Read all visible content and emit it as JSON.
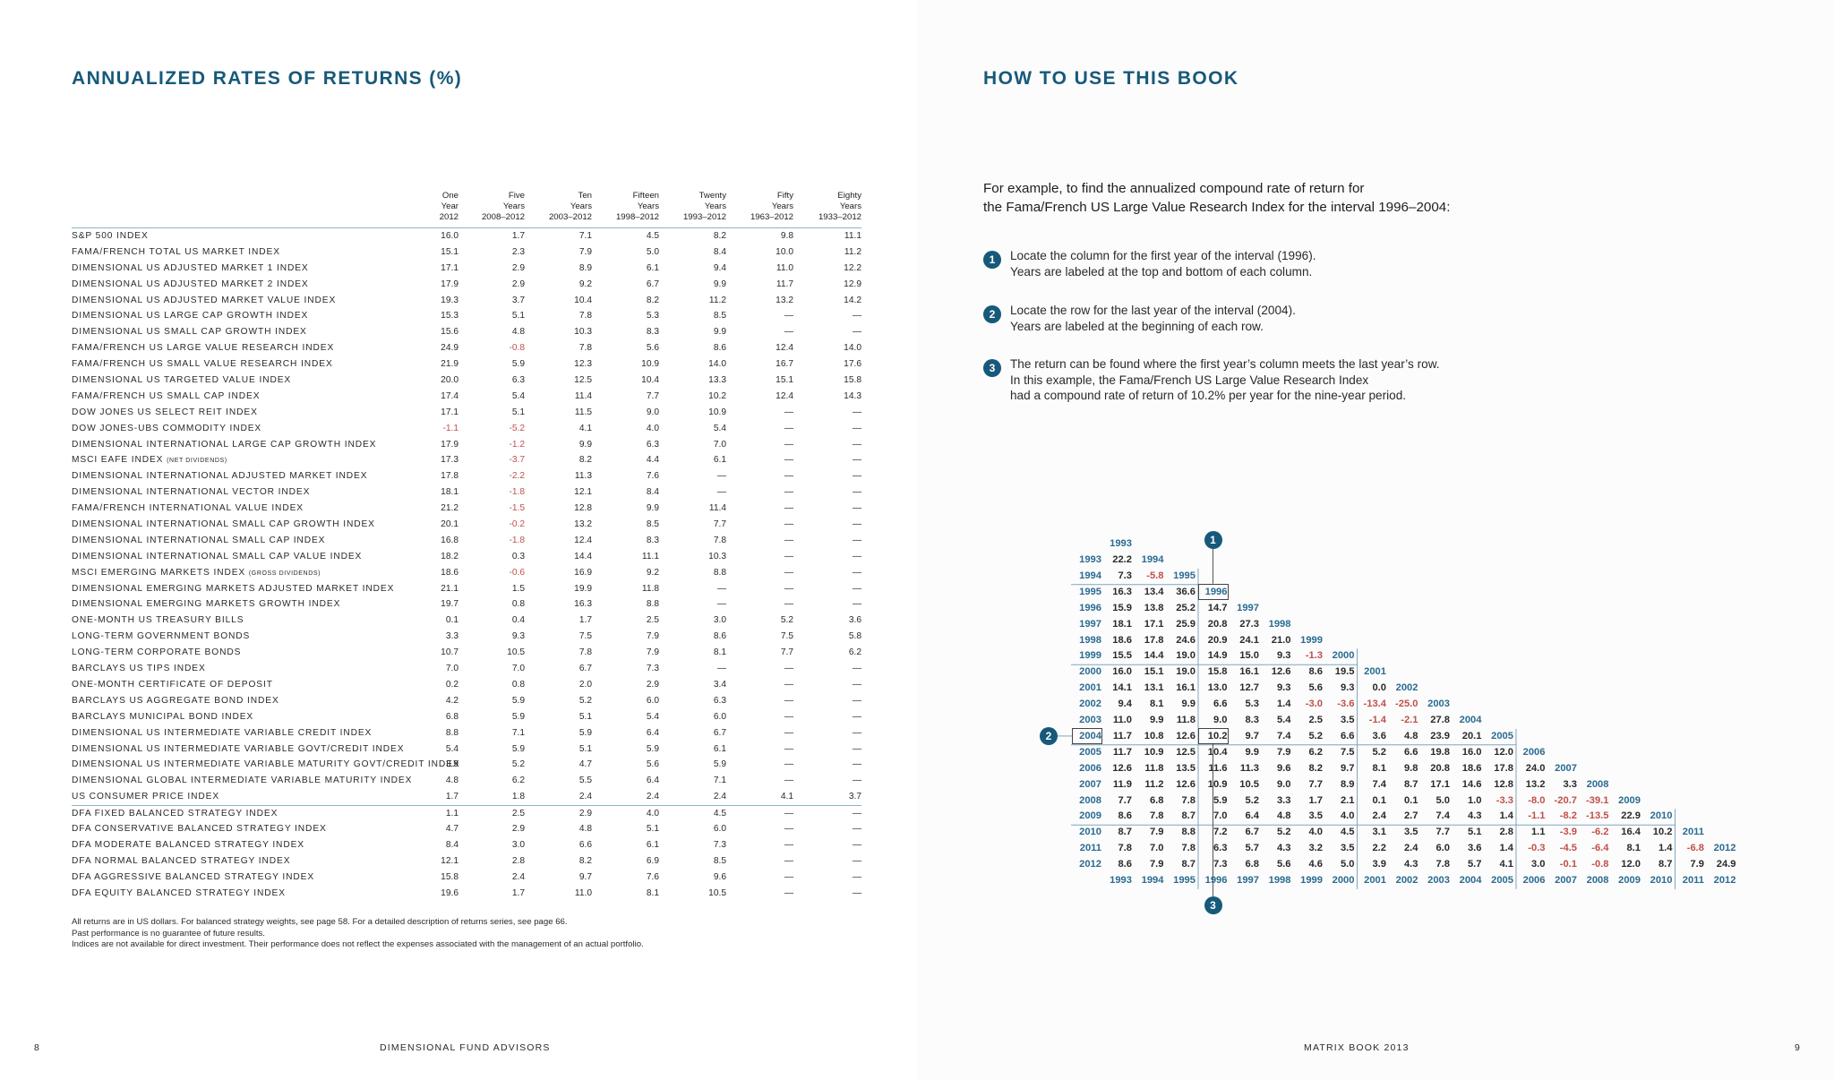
{
  "left": {
    "title": "ANNUALIZED RATES OF RETURNS (%)",
    "columns": [
      [
        "One",
        "Year",
        "2012"
      ],
      [
        "Five",
        "Years",
        "2008–2012"
      ],
      [
        "Ten",
        "Years",
        "2003–2012"
      ],
      [
        "Fifteen",
        "Years",
        "1998–2012"
      ],
      [
        "Twenty",
        "Years",
        "1993–2012"
      ],
      [
        "Fifty",
        "Years",
        "1963–2012"
      ],
      [
        "Eighty",
        "Years",
        "1933–2012"
      ]
    ],
    "rows": [
      {
        "label": "S&P 500 INDEX",
        "values": [
          "16.0",
          "1.7",
          "7.1",
          "4.5",
          "8.2",
          "9.8",
          "11.1"
        ]
      },
      {
        "label": "FAMA/FRENCH TOTAL US MARKET INDEX",
        "values": [
          "15.1",
          "2.3",
          "7.9",
          "5.0",
          "8.4",
          "10.0",
          "11.2"
        ]
      },
      {
        "label": "DIMENSIONAL US ADJUSTED MARKET 1 INDEX",
        "values": [
          "17.1",
          "2.9",
          "8.9",
          "6.1",
          "9.4",
          "11.0",
          "12.2"
        ]
      },
      {
        "label": "DIMENSIONAL US ADJUSTED MARKET 2 INDEX",
        "values": [
          "17.9",
          "2.9",
          "9.2",
          "6.7",
          "9.9",
          "11.7",
          "12.9"
        ]
      },
      {
        "label": "DIMENSIONAL US ADJUSTED MARKET VALUE INDEX",
        "values": [
          "19.3",
          "3.7",
          "10.4",
          "8.2",
          "11.2",
          "13.2",
          "14.2"
        ]
      },
      {
        "label": "DIMENSIONAL US LARGE CAP GROWTH INDEX",
        "values": [
          "15.3",
          "5.1",
          "7.8",
          "5.3",
          "8.5",
          "—",
          "—"
        ]
      },
      {
        "label": "DIMENSIONAL US SMALL CAP GROWTH INDEX",
        "values": [
          "15.6",
          "4.8",
          "10.3",
          "8.3",
          "9.9",
          "—",
          "—"
        ]
      },
      {
        "label": "FAMA/FRENCH US LARGE VALUE RESEARCH INDEX",
        "values": [
          "24.9",
          "-0.8",
          "7.8",
          "5.6",
          "8.6",
          "12.4",
          "14.0"
        ]
      },
      {
        "label": "FAMA/FRENCH US SMALL VALUE RESEARCH INDEX",
        "values": [
          "21.9",
          "5.9",
          "12.3",
          "10.9",
          "14.0",
          "16.7",
          "17.6"
        ]
      },
      {
        "label": "DIMENSIONAL US TARGETED VALUE INDEX",
        "values": [
          "20.0",
          "6.3",
          "12.5",
          "10.4",
          "13.3",
          "15.1",
          "15.8"
        ]
      },
      {
        "label": "FAMA/FRENCH US SMALL CAP INDEX",
        "values": [
          "17.4",
          "5.4",
          "11.4",
          "7.7",
          "10.2",
          "12.4",
          "14.3"
        ]
      },
      {
        "label": "DOW JONES US SELECT REIT INDEX",
        "values": [
          "17.1",
          "5.1",
          "11.5",
          "9.0",
          "10.9",
          "—",
          "—"
        ]
      },
      {
        "label": "DOW JONES-UBS COMMODITY INDEX",
        "values": [
          "-1.1",
          "-5.2",
          "4.1",
          "4.0",
          "5.4",
          "—",
          "—"
        ]
      },
      {
        "label": "DIMENSIONAL INTERNATIONAL LARGE CAP GROWTH INDEX",
        "values": [
          "17.9",
          "-1.2",
          "9.9",
          "6.3",
          "7.0",
          "—",
          "—"
        ]
      },
      {
        "label": "MSCI EAFE INDEX",
        "note": "(NET DIVIDENDS)",
        "values": [
          "17.3",
          "-3.7",
          "8.2",
          "4.4",
          "6.1",
          "—",
          "—"
        ]
      },
      {
        "label": "DIMENSIONAL INTERNATIONAL ADJUSTED MARKET INDEX",
        "values": [
          "17.8",
          "-2.2",
          "11.3",
          "7.6",
          "—",
          "—",
          "—"
        ]
      },
      {
        "label": "DIMENSIONAL INTERNATIONAL VECTOR INDEX",
        "values": [
          "18.1",
          "-1.8",
          "12.1",
          "8.4",
          "—",
          "—",
          "—"
        ]
      },
      {
        "label": "FAMA/FRENCH INTERNATIONAL VALUE INDEX",
        "values": [
          "21.2",
          "-1.5",
          "12.8",
          "9.9",
          "11.4",
          "—",
          "—"
        ]
      },
      {
        "label": "DIMENSIONAL INTERNATIONAL SMALL CAP GROWTH INDEX",
        "values": [
          "20.1",
          "-0.2",
          "13.2",
          "8.5",
          "7.7",
          "—",
          "—"
        ]
      },
      {
        "label": "DIMENSIONAL INTERNATIONAL SMALL CAP INDEX",
        "values": [
          "16.8",
          "-1.8",
          "12.4",
          "8.3",
          "7.8",
          "—",
          "—"
        ]
      },
      {
        "label": "DIMENSIONAL INTERNATIONAL SMALL CAP VALUE INDEX",
        "values": [
          "18.2",
          "0.3",
          "14.4",
          "11.1",
          "10.3",
          "—",
          "—"
        ]
      },
      {
        "label": "MSCI EMERGING MARKETS INDEX",
        "note": "(GROSS DIVIDENDS)",
        "values": [
          "18.6",
          "-0.6",
          "16.9",
          "9.2",
          "8.8",
          "—",
          "—"
        ]
      },
      {
        "label": "DIMENSIONAL EMERGING MARKETS ADJUSTED MARKET INDEX",
        "values": [
          "21.1",
          "1.5",
          "19.9",
          "11.8",
          "—",
          "—",
          "—"
        ]
      },
      {
        "label": "DIMENSIONAL EMERGING MARKETS GROWTH INDEX",
        "values": [
          "19.7",
          "0.8",
          "16.3",
          "8.8",
          "—",
          "—",
          "—"
        ]
      },
      {
        "label": "ONE-MONTH US TREASURY BILLS",
        "values": [
          "0.1",
          "0.4",
          "1.7",
          "2.5",
          "3.0",
          "5.2",
          "3.6"
        ]
      },
      {
        "label": "LONG-TERM GOVERNMENT BONDS",
        "values": [
          "3.3",
          "9.3",
          "7.5",
          "7.9",
          "8.6",
          "7.5",
          "5.8"
        ]
      },
      {
        "label": "LONG-TERM CORPORATE BONDS",
        "values": [
          "10.7",
          "10.5",
          "7.8",
          "7.9",
          "8.1",
          "7.7",
          "6.2"
        ]
      },
      {
        "label": "BARCLAYS US TIPS INDEX",
        "values": [
          "7.0",
          "7.0",
          "6.7",
          "7.3",
          "—",
          "—",
          "—"
        ]
      },
      {
        "label": "ONE-MONTH CERTIFICATE OF DEPOSIT",
        "values": [
          "0.2",
          "0.8",
          "2.0",
          "2.9",
          "3.4",
          "—",
          "—"
        ]
      },
      {
        "label": "BARCLAYS US AGGREGATE BOND INDEX",
        "values": [
          "4.2",
          "5.9",
          "5.2",
          "6.0",
          "6.3",
          "—",
          "—"
        ]
      },
      {
        "label": "BARCLAYS MUNICIPAL BOND INDEX",
        "values": [
          "6.8",
          "5.9",
          "5.1",
          "5.4",
          "6.0",
          "—",
          "—"
        ]
      },
      {
        "label": "DIMENSIONAL US INTERMEDIATE VARIABLE CREDIT INDEX",
        "values": [
          "8.8",
          "7.1",
          "5.9",
          "6.4",
          "6.7",
          "—",
          "—"
        ]
      },
      {
        "label": "DIMENSIONAL US INTERMEDIATE VARIABLE GOVT/CREDIT INDEX",
        "values": [
          "5.4",
          "5.9",
          "5.1",
          "5.9",
          "6.1",
          "—",
          "—"
        ]
      },
      {
        "label": "DIMENSIONAL US INTERMEDIATE VARIABLE MATURITY GOVT/CREDIT INDEX",
        "values": [
          "3.9",
          "5.2",
          "4.7",
          "5.6",
          "5.9",
          "—",
          "—"
        ]
      },
      {
        "label": "DIMENSIONAL GLOBAL INTERMEDIATE VARIABLE MATURITY INDEX",
        "values": [
          "4.8",
          "6.2",
          "5.5",
          "6.4",
          "7.1",
          "—",
          "—"
        ]
      },
      {
        "label": "US CONSUMER PRICE INDEX",
        "values": [
          "1.7",
          "1.8",
          "2.4",
          "2.4",
          "2.4",
          "4.1",
          "3.7"
        ]
      },
      {
        "label": "DFA FIXED BALANCED STRATEGY INDEX",
        "values": [
          "1.1",
          "2.5",
          "2.9",
          "4.0",
          "4.5",
          "—",
          "—"
        ]
      },
      {
        "label": "DFA CONSERVATIVE BALANCED STRATEGY INDEX",
        "values": [
          "4.7",
          "2.9",
          "4.8",
          "5.1",
          "6.0",
          "—",
          "—"
        ]
      },
      {
        "label": "DFA MODERATE BALANCED STRATEGY INDEX",
        "values": [
          "8.4",
          "3.0",
          "6.6",
          "6.1",
          "7.3",
          "—",
          "—"
        ]
      },
      {
        "label": "DFA NORMAL BALANCED STRATEGY INDEX",
        "values": [
          "12.1",
          "2.8",
          "8.2",
          "6.9",
          "8.5",
          "—",
          "—"
        ]
      },
      {
        "label": "DFA AGGRESSIVE BALANCED STRATEGY INDEX",
        "values": [
          "15.8",
          "2.4",
          "9.7",
          "7.6",
          "9.6",
          "—",
          "—"
        ]
      },
      {
        "label": "DFA EQUITY BALANCED STRATEGY INDEX",
        "values": [
          "19.6",
          "1.7",
          "11.0",
          "8.1",
          "10.5",
          "—",
          "—"
        ]
      }
    ],
    "footnotes": [
      "All returns are in US dollars. For balanced strategy weights, see page 58. For a detailed description of returns series, see page 66.",
      "Past performance is no guarantee of future results.",
      "Indices are not available for direct investment. Their performance does not reflect the expenses associated with the management of an actual portfolio."
    ],
    "page_number": "8",
    "footer_text": "DIMENSIONAL FUND ADVISORS"
  },
  "right": {
    "title": "HOW TO USE THIS BOOK",
    "intro": [
      "For example, to find the annualized compound rate of return for",
      "the Fama/French US Large Value Research Index for the interval 1996–2004:"
    ],
    "steps": [
      {
        "num": "1",
        "lines": [
          "Locate the column for the first year of the interval (1996).",
          "Years are labeled at the top and bottom of each column."
        ]
      },
      {
        "num": "2",
        "lines": [
          "Locate the row for the last year of the interval (2004).",
          "Years are labeled at the beginning of each row."
        ]
      },
      {
        "num": "3",
        "lines": [
          "The return can be found where the first year’s column meets the last year’s row.",
          "In this example, the Fama/French US Large Value Research Index",
          "had a compound rate of return of 10.2% per year for the nine-year period."
        ]
      }
    ],
    "matrix": {
      "years": [
        "1993",
        "1994",
        "1995",
        "1996",
        "1997",
        "1998",
        "1999",
        "2000",
        "2001",
        "2002",
        "2003",
        "2004",
        "2005",
        "2006",
        "2007",
        "2008",
        "2009",
        "2010",
        "2011",
        "2012"
      ],
      "rows": [
        [
          "22.2"
        ],
        [
          "7.3",
          "-5.8"
        ],
        [
          "16.3",
          "13.4",
          "36.6"
        ],
        [
          "15.9",
          "13.8",
          "25.2",
          "14.7"
        ],
        [
          "18.1",
          "17.1",
          "25.9",
          "20.8",
          "27.3"
        ],
        [
          "18.6",
          "17.8",
          "24.6",
          "20.9",
          "24.1",
          "21.0"
        ],
        [
          "15.5",
          "14.4",
          "19.0",
          "14.9",
          "15.0",
          "9.3",
          "-1.3"
        ],
        [
          "16.0",
          "15.1",
          "19.0",
          "15.8",
          "16.1",
          "12.6",
          "8.6",
          "19.5"
        ],
        [
          "14.1",
          "13.1",
          "16.1",
          "13.0",
          "12.7",
          "9.3",
          "5.6",
          "9.3",
          "0.0"
        ],
        [
          "9.4",
          "8.1",
          "9.9",
          "6.6",
          "5.3",
          "1.4",
          "-3.0",
          "-3.6",
          "-13.4",
          "-25.0"
        ],
        [
          "11.0",
          "9.9",
          "11.8",
          "9.0",
          "8.3",
          "5.4",
          "2.5",
          "3.5",
          "-1.4",
          "-2.1",
          "27.8"
        ],
        [
          "11.7",
          "10.8",
          "12.6",
          "10.2",
          "9.7",
          "7.4",
          "5.2",
          "6.6",
          "3.6",
          "4.8",
          "23.9",
          "20.1"
        ],
        [
          "11.7",
          "10.9",
          "12.5",
          "10.4",
          "9.9",
          "7.9",
          "6.2",
          "7.5",
          "5.2",
          "6.6",
          "19.8",
          "16.0",
          "12.0"
        ],
        [
          "12.6",
          "11.8",
          "13.5",
          "11.6",
          "11.3",
          "9.6",
          "8.2",
          "9.7",
          "8.1",
          "9.8",
          "20.8",
          "18.6",
          "17.8",
          "24.0"
        ],
        [
          "11.9",
          "11.2",
          "12.6",
          "10.9",
          "10.5",
          "9.0",
          "7.7",
          "8.9",
          "7.4",
          "8.7",
          "17.1",
          "14.6",
          "12.8",
          "13.2",
          "3.3"
        ],
        [
          "7.7",
          "6.8",
          "7.8",
          "5.9",
          "5.2",
          "3.3",
          "1.7",
          "2.1",
          "0.1",
          "0.1",
          "5.0",
          "1.0",
          "-3.3",
          "-8.0",
          "-20.7",
          "-39.1"
        ],
        [
          "8.6",
          "7.8",
          "8.7",
          "7.0",
          "6.4",
          "4.8",
          "3.5",
          "4.0",
          "2.4",
          "2.7",
          "7.4",
          "4.3",
          "1.4",
          "-1.1",
          "-8.2",
          "-13.5",
          "22.9"
        ],
        [
          "8.7",
          "7.9",
          "8.8",
          "7.2",
          "6.7",
          "5.2",
          "4.0",
          "4.5",
          "3.1",
          "3.5",
          "7.7",
          "5.1",
          "2.8",
          "1.1",
          "-3.9",
          "-6.2",
          "16.4",
          "10.2"
        ],
        [
          "7.8",
          "7.0",
          "7.8",
          "6.3",
          "5.7",
          "4.3",
          "3.2",
          "3.5",
          "2.2",
          "2.4",
          "6.0",
          "3.6",
          "1.4",
          "-0.3",
          "-4.5",
          "-6.4",
          "8.1",
          "1.4",
          "-6.8"
        ],
        [
          "8.6",
          "7.9",
          "8.7",
          "7.3",
          "6.8",
          "5.6",
          "4.6",
          "5.0",
          "3.9",
          "4.3",
          "7.8",
          "5.7",
          "4.1",
          "3.0",
          "-0.1",
          "-0.8",
          "12.0",
          "8.7",
          "7.9",
          "24.9"
        ]
      ],
      "callouts": [
        "1",
        "2",
        "3"
      ]
    },
    "page_number": "9",
    "footer_text": "MATRIX BOOK 2013"
  }
}
